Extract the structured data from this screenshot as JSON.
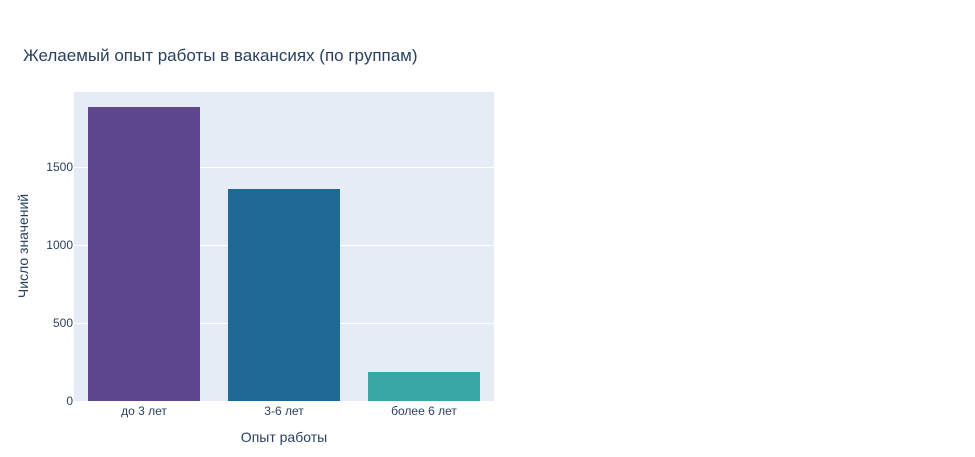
{
  "chart_data": {
    "type": "bar",
    "title": "Желаемый опыт работы в вакансиях (по группам)",
    "xlabel": "Опыт работы",
    "ylabel": "Число значений",
    "categories": [
      "до 3 лет",
      "3-6 лет",
      "более 6 лет"
    ],
    "values": [
      1885,
      1359,
      189
    ],
    "colors": [
      "#5e478d",
      "#1f6a94",
      "#38a6a5"
    ],
    "ylim": [
      0,
      1981
    ],
    "yticks": [
      0,
      500,
      1000,
      1500
    ],
    "grid": true,
    "legend": false,
    "plot_bg": "#e5ecf6"
  }
}
